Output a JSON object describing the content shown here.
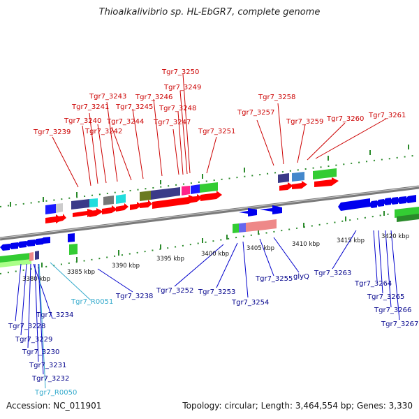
{
  "title": "Thioalkalivibrio sp. HL-EbGR7, complete genome",
  "footer": {
    "accession": "Accession: NC_011901",
    "info": "Topology: circular; Length: 3,464,554 bp; Genes: 3,330"
  },
  "kbp_labels": [
    "3380 kbp",
    "3385 kbp",
    "3390 kbp",
    "3395 kbp",
    "3400 kbp",
    "3405 kbp",
    "3410 kbp",
    "3415 kbp",
    "3420 kbp"
  ],
  "top_labels": [
    "Tgr7_3250",
    "Tgr7_3249",
    "Tgr7_3243",
    "Tgr7_3246",
    "Tgr7_3258",
    "Tgr7_3241",
    "Tgr7_3245",
    "Tgr7_3248",
    "Tgr7_3257",
    "Tgr7_3240",
    "Tgr7_3242",
    "Tgr7_3244",
    "Tgr7_3247",
    "Tgr7_3259",
    "Tgr7_3260",
    "Tgr7_3261",
    "Tgr7_3239",
    "Tgr7_3251"
  ],
  "bottom_labels": [
    "Tgr7_3252",
    "Tgr7_3253",
    "Tgr7_3254",
    "Tgr7_3255",
    "glyQ",
    "Tgr7_3263",
    "Tgr7_3238",
    "Tgr7_R0051",
    "Tgr7_3234",
    "Tgr7_3228",
    "Tgr7_3229",
    "Tgr7_3230",
    "Tgr7_3231",
    "Tgr7_3232",
    "Tgr7_R0050",
    "Tgr7_3264",
    "Tgr7_3265",
    "Tgr7_3266",
    "Tgr7_3267"
  ]
}
